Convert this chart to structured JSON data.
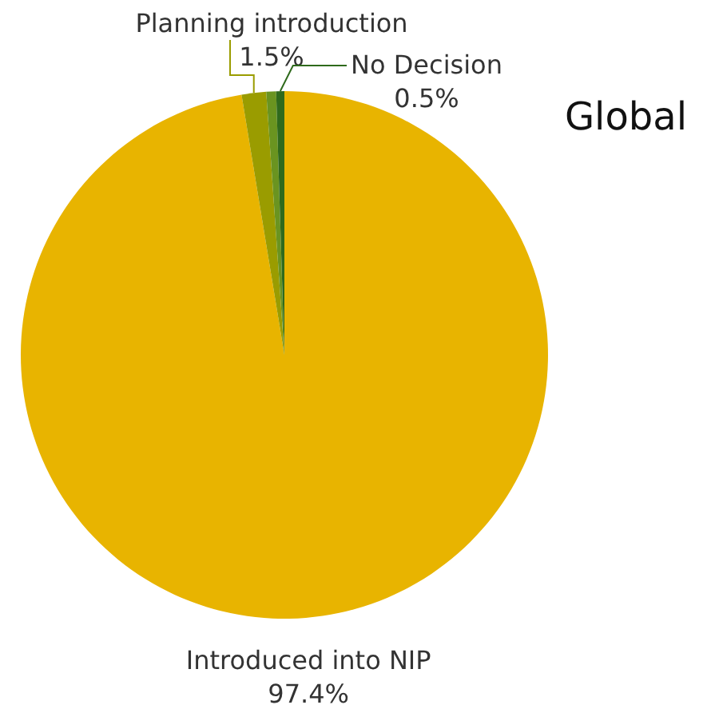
{
  "chart_data": {
    "type": "pie",
    "title": "Global",
    "categories": [
      "Introduced into NIP",
      "Planning introduction",
      null,
      "No Decision"
    ],
    "values": [
      97.4,
      1.5,
      0.6,
      0.5
    ],
    "value_labels": [
      "97.4%",
      "1.5%",
      null,
      "0.5%"
    ],
    "colors": [
      "#e8b400",
      "#9a9c00",
      "#6a9420",
      "#2f6a1c"
    ]
  }
}
